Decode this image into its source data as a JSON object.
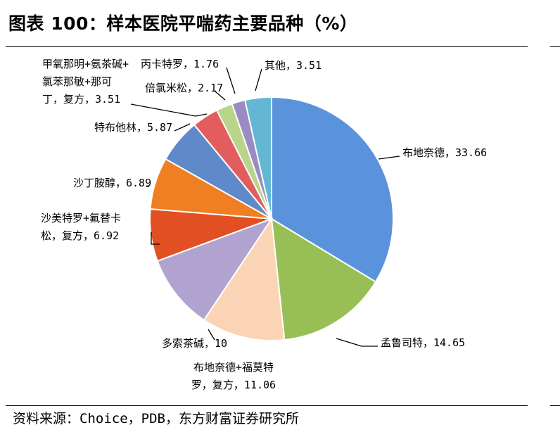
{
  "figure_title": "图表 100：样本医院平喘药主要品种（%）",
  "source": "资料来源：Choice，PDB，东方财富证券研究所",
  "chart_data": {
    "type": "pie",
    "title": "",
    "start_angle_deg": 0,
    "direction": "clockwise",
    "slices": [
      {
        "name": "布地奈德",
        "value": 33.66,
        "color": "#5a93dc",
        "label_lines": [
          "布地奈德，33.66"
        ]
      },
      {
        "name": "孟鲁司特",
        "value": 14.65,
        "color": "#97bf55",
        "label_lines": [
          "孟鲁司特，14.65"
        ]
      },
      {
        "name": "布地奈德+福莫特罗，复方",
        "value": 11.06,
        "color": "#fad4b4",
        "label_lines": [
          "布地奈德+福莫特",
          "罗，复方，11.06"
        ]
      },
      {
        "name": "多索茶碱",
        "value": 10,
        "color": "#b1a3d0",
        "label_lines": [
          "多索茶碱，10"
        ]
      },
      {
        "name": "沙美特罗+氟替卡松，复方",
        "value": 6.92,
        "color": "#e24f22",
        "label_lines": [
          "沙美特罗+氟替卡",
          "松，复方，6.92"
        ]
      },
      {
        "name": "沙丁胺醇",
        "value": 6.89,
        "color": "#ef7f22",
        "label_lines": [
          "沙丁胺醇，6.89"
        ]
      },
      {
        "name": "特布他林",
        "value": 5.87,
        "color": "#5f89c8",
        "label_lines": [
          "特布他林，5.87"
        ]
      },
      {
        "name": "甲氧那明+氨茶碱+氯苯那敏+那可丁，复方",
        "value": 3.51,
        "color": "#e25d5d",
        "label_lines": [
          "甲氧那明+氨茶碱+",
          "氯苯那敏+那可",
          "丁，复方，3.51"
        ]
      },
      {
        "name": "倍氯米松",
        "value": 2.17,
        "color": "#b8d58a",
        "label_lines": [
          "倍氯米松，2.17"
        ]
      },
      {
        "name": "丙卡特罗",
        "value": 1.76,
        "color": "#9a8cc3",
        "label_lines": [
          "丙卡特罗，1.76"
        ]
      },
      {
        "name": "其他",
        "value": 3.51,
        "color": "#63b7d5",
        "label_lines": [
          "其他，3.51"
        ]
      }
    ]
  }
}
